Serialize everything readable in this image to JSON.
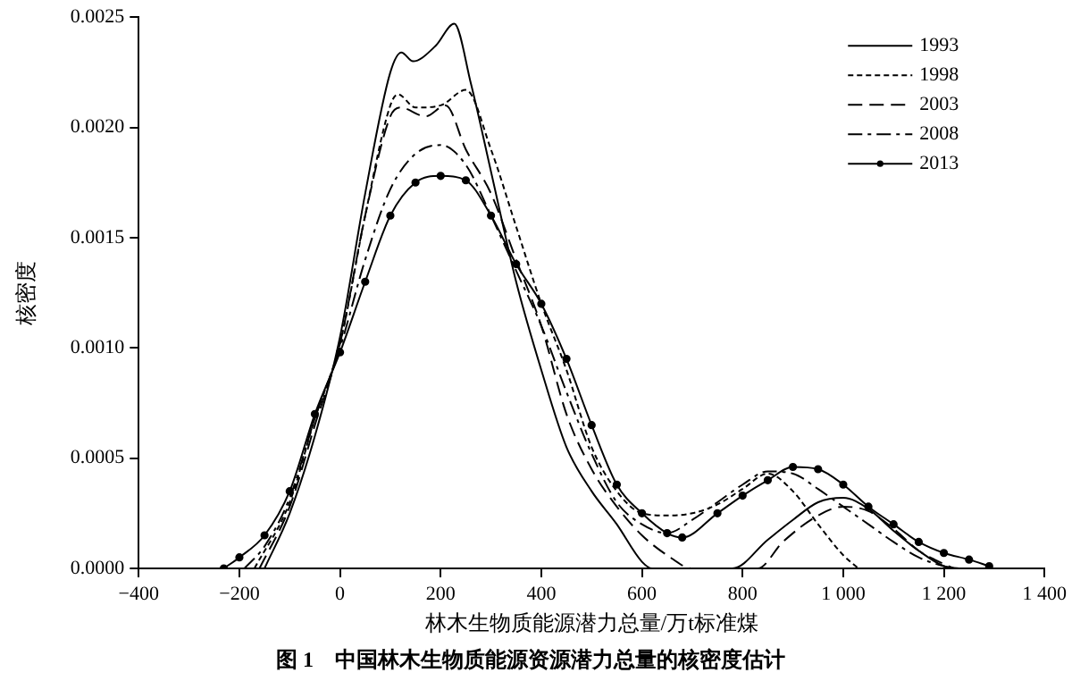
{
  "chart_data": {
    "type": "line",
    "title": "图 1　中国林木生物质能源资源潜力总量的核密度估计",
    "xlabel": "林木生物质能源潜力总量/万t标准煤",
    "ylabel": "核密度",
    "xlim": [
      -400,
      1400
    ],
    "xticks": [
      {
        "value": -400,
        "label": "−400"
      },
      {
        "value": -200,
        "label": "−200"
      },
      0,
      200,
      400,
      600,
      800,
      {
        "value": 1000,
        "label": "1 000"
      },
      {
        "value": 1200,
        "label": "1 200"
      },
      {
        "value": 1400,
        "label": "1 400"
      }
    ],
    "ylim": [
      0,
      0.0025
    ],
    "yticks": [
      {
        "value": 0,
        "label": "0.0000"
      },
      {
        "value": 0.0005,
        "label": "0.0005"
      },
      {
        "value": 0.001,
        "label": "0.0010"
      },
      {
        "value": 0.0015,
        "label": "0.0015"
      },
      {
        "value": 0.002,
        "label": "0.0020"
      },
      {
        "value": 0.0025,
        "label": "0.0025"
      }
    ],
    "grid": false,
    "legend": "top right",
    "marker": "none",
    "series": [
      {
        "name": "1993",
        "color": "#000000",
        "line_style": "solid",
        "x": [
          -150,
          -100,
          -50,
          0,
          50,
          100,
          122,
          145,
          190,
          227,
          260,
          300,
          350,
          400,
          450,
          500,
          550,
          600,
          620,
          780,
          850,
          900,
          950,
          1000,
          1050,
          1100,
          1150,
          1200,
          1230
        ],
        "values": [
          0,
          0.00025,
          0.0006,
          0.00105,
          0.0017,
          0.00225,
          0.00234,
          0.0023,
          0.00237,
          0.00247,
          0.0022,
          0.0018,
          0.0013,
          0.0009,
          0.00055,
          0.00035,
          0.0002,
          3e-05,
          0,
          0,
          0.00013,
          0.00022,
          0.0003,
          0.00032,
          0.00027,
          0.00017,
          8e-05,
          1e-05,
          0
        ]
      },
      {
        "name": "1998",
        "color": "#000000",
        "line_style": "dotted",
        "x": [
          -170,
          -100,
          -50,
          0,
          50,
          100,
          115,
          150,
          200,
          250,
          300,
          350,
          400,
          450,
          500,
          550,
          600,
          650,
          700,
          750,
          800,
          850,
          900,
          950,
          1000,
          1030
        ],
        "values": [
          0,
          0.0003,
          0.00068,
          0.00102,
          0.0016,
          0.0021,
          0.00215,
          0.00209,
          0.0021,
          0.00217,
          0.0019,
          0.00155,
          0.0012,
          0.0009,
          0.00055,
          0.00035,
          0.00025,
          0.00024,
          0.00025,
          0.00029,
          0.00036,
          0.00043,
          0.00035,
          0.0002,
          6e-05,
          0
        ]
      },
      {
        "name": "2003",
        "color": "#000000",
        "line_style": "dashed",
        "x": [
          -160,
          -100,
          -50,
          0,
          50,
          100,
          120,
          170,
          210,
          250,
          300,
          350,
          400,
          450,
          500,
          550,
          600,
          650,
          700,
          830,
          880,
          950,
          1000,
          1050,
          1100,
          1150,
          1200,
          1220
        ],
        "values": [
          0,
          0.00028,
          0.00065,
          0.00102,
          0.0016,
          0.00205,
          0.00209,
          0.00205,
          0.0021,
          0.0019,
          0.0017,
          0.0014,
          0.0011,
          0.0007,
          0.00045,
          0.00028,
          0.00015,
          6e-05,
          0,
          0,
          0.00012,
          0.00024,
          0.00028,
          0.00026,
          0.00018,
          8e-05,
          2e-05,
          0
        ]
      },
      {
        "name": "2008",
        "color": "#000000",
        "line_style": "dashdot",
        "x": [
          -190,
          -150,
          -100,
          -50,
          0,
          50,
          100,
          150,
          200,
          250,
          300,
          350,
          400,
          450,
          500,
          550,
          600,
          650,
          700,
          750,
          800,
          850,
          900,
          950,
          1000,
          1050,
          1100,
          1150,
          1200,
          1220
        ],
        "values": [
          0,
          0.0001,
          0.00032,
          0.00068,
          0.001,
          0.0014,
          0.00172,
          0.00188,
          0.00192,
          0.00183,
          0.0016,
          0.00135,
          0.0011,
          0.0008,
          0.00052,
          0.0003,
          0.0002,
          0.00016,
          0.00022,
          0.0003,
          0.00038,
          0.00044,
          0.00043,
          0.00036,
          0.00028,
          0.0002,
          0.00012,
          5e-05,
          1e-05,
          0
        ]
      },
      {
        "name": "2013",
        "color": "#000000",
        "line_style": "solid",
        "marker": "circle",
        "x": [
          -231,
          -200,
          -150,
          -100,
          -50,
          0,
          50,
          100,
          150,
          200,
          250,
          300,
          350,
          400,
          450,
          500,
          550,
          600,
          650,
          680,
          750,
          800,
          850,
          900,
          950,
          1000,
          1050,
          1100,
          1150,
          1200,
          1250,
          1290
        ],
        "values": [
          0,
          5e-05,
          0.00015,
          0.00035,
          0.0007,
          0.00098,
          0.0013,
          0.0016,
          0.00175,
          0.00178,
          0.00176,
          0.0016,
          0.00138,
          0.0012,
          0.00095,
          0.00065,
          0.00038,
          0.00025,
          0.00016,
          0.00014,
          0.00025,
          0.00033,
          0.0004,
          0.00046,
          0.00045,
          0.00038,
          0.00028,
          0.0002,
          0.00012,
          7e-05,
          4e-05,
          1e-05
        ]
      }
    ]
  }
}
